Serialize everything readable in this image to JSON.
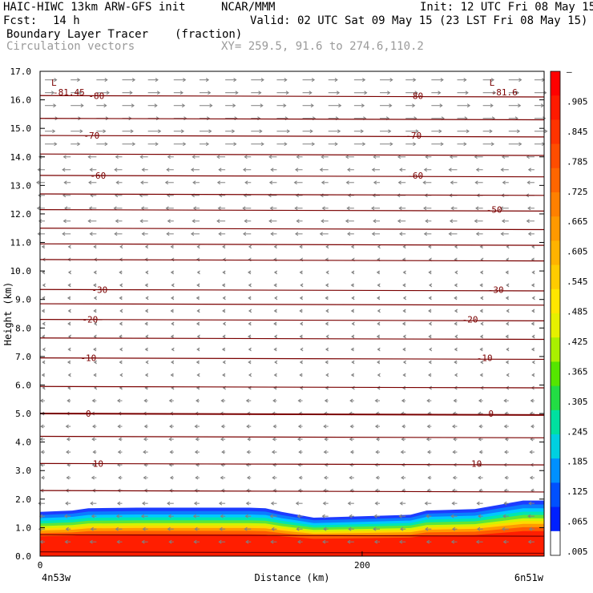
{
  "header": {
    "model": "HAIC-HIWC 13km ARW-GFS init",
    "org": "NCAR/MMM",
    "init": "Init: 12 UTC Fri 08 May 15",
    "fcst_label": "Fcst:",
    "fcst_value": "14 h",
    "valid": "Valid: 02 UTC Sat 09 May 15 (23 LST Fri 08 May 15)",
    "field": "Boundary Layer Tracer",
    "field_units": "(fraction)",
    "overlay": "Circulation vectors",
    "xy": "XY= 259.5, 91.6 to 274.6,110.2"
  },
  "chart_data": {
    "type": "cross-section",
    "xlabel": "Distance (km)",
    "ylabel": "Height (km)",
    "xlim": [
      0,
      313
    ],
    "ylim": [
      0,
      17
    ],
    "x_ticks": [
      0,
      200
    ],
    "y_ticks": [
      "0.0",
      "1.0",
      "2.0",
      "3.0",
      "4.0",
      "5.0",
      "6.0",
      "7.0",
      "8.0",
      "9.0",
      "10.0",
      "11.0",
      "12.0",
      "13.0",
      "14.0",
      "15.0",
      "16.0",
      "17.0"
    ],
    "x_endpoints": {
      "left": "4n53w",
      "right": "6n51w"
    },
    "tracer_top_km": [
      [
        0,
        1.55
      ],
      [
        20,
        1.6
      ],
      [
        30,
        1.68
      ],
      [
        60,
        1.7
      ],
      [
        130,
        1.7
      ],
      [
        140,
        1.68
      ],
      [
        150,
        1.55
      ],
      [
        160,
        1.45
      ],
      [
        170,
        1.35
      ],
      [
        200,
        1.4
      ],
      [
        230,
        1.45
      ],
      [
        240,
        1.6
      ],
      [
        270,
        1.65
      ],
      [
        290,
        1.85
      ],
      [
        300,
        1.95
      ],
      [
        313,
        1.95
      ]
    ],
    "temperature_contours": [
      {
        "level": -80,
        "y_km": 16.15
      },
      {
        "level": -70,
        "y_km": 14.75
      },
      {
        "level": -60,
        "y_km": 13.35
      },
      {
        "level": -50,
        "y_km": 12.15
      },
      {
        "level": -30,
        "y_km": 9.35
      },
      {
        "level": -20,
        "y_km": 8.3
      },
      {
        "level": -10,
        "y_km": 6.95
      },
      {
        "level": 0,
        "y_km": 5.0
      },
      {
        "level": 10,
        "y_km": 3.25
      }
    ],
    "contour_lines_km": [
      16.15,
      15.35,
      14.75,
      14.1,
      13.35,
      12.7,
      12.15,
      11.5,
      10.95,
      10.4,
      9.35,
      8.85,
      8.3,
      7.65,
      6.95,
      5.95,
      5.0,
      4.2,
      3.25,
      2.3,
      0.75,
      0.15
    ],
    "labels_text": [
      {
        "text": "-80",
        "x_km": 35,
        "y_km": 16.15
      },
      {
        "text": "-80",
        "x_km": 233,
        "y_km": 16.15
      },
      {
        "text": "-70",
        "x_km": 32,
        "y_km": 14.75
      },
      {
        "text": "-70",
        "x_km": 232,
        "y_km": 14.75
      },
      {
        "text": "-60",
        "x_km": 36,
        "y_km": 13.35
      },
      {
        "text": "-60",
        "x_km": 233,
        "y_km": 13.35
      },
      {
        "text": "-50",
        "x_km": 282,
        "y_km": 12.15
      },
      {
        "text": "-30",
        "x_km": 37,
        "y_km": 9.35
      },
      {
        "text": "-30",
        "x_km": 283,
        "y_km": 9.35
      },
      {
        "text": "-20",
        "x_km": 31,
        "y_km": 8.3
      },
      {
        "text": "-20",
        "x_km": 267,
        "y_km": 8.3
      },
      {
        "text": "-10",
        "x_km": 30,
        "y_km": 6.95
      },
      {
        "text": "-10",
        "x_km": 276,
        "y_km": 6.95
      },
      {
        "text": "0",
        "x_km": 30,
        "y_km": 5.0
      },
      {
        "text": "0",
        "x_km": 280,
        "y_km": 5.0
      },
      {
        "text": "10",
        "x_km": 36,
        "y_km": 3.25
      },
      {
        "text": "10",
        "x_km": 271,
        "y_km": 3.25
      }
    ],
    "lows": [
      {
        "letter": "L",
        "value": "-81.45",
        "x_km": 3,
        "y_km": 16.5
      },
      {
        "letter": "L",
        "value": "-81.6",
        "x_km": 275,
        "y_km": 16.5
      }
    ],
    "colorbar": {
      "labels": [
        "–",
        ".905",
        ".845",
        ".785",
        ".725",
        ".665",
        ".605",
        ".545",
        ".485",
        ".425",
        ".365",
        ".305",
        ".245",
        ".185",
        ".125",
        ".065",
        ".005"
      ],
      "colors": [
        "#ff0000",
        "#ff1a00",
        "#ff3300",
        "#ff4d00",
        "#ff6600",
        "#ff8000",
        "#ff9900",
        "#ffb300",
        "#ffcc00",
        "#ffe600",
        "#e6f000",
        "#aaf000",
        "#55e600",
        "#22dd44",
        "#00e0a0",
        "#00d0e0",
        "#0090ff",
        "#0050ff",
        "#0020ff",
        "#ffffff"
      ]
    },
    "contour_color": "#7a0000",
    "vector_color": "#808080"
  }
}
